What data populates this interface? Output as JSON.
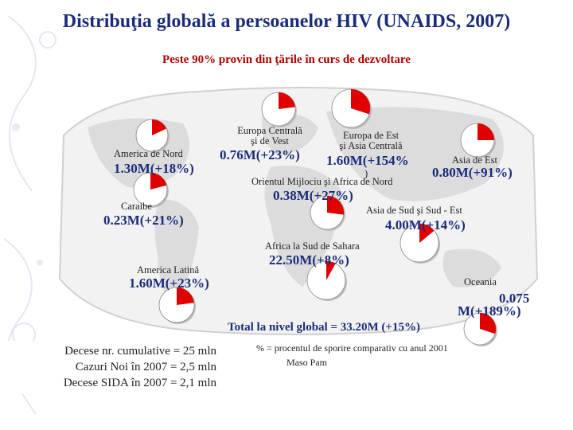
{
  "title": "Distribuţia globală a persoanelor HIV (UNAIDS, 2007)",
  "subtitle": "Peste 90% provin din ţările în curs de dezvoltare",
  "regions": [
    {
      "name": "America de Nord",
      "value": "1.30M(+18%)",
      "share": 0.18
    },
    {
      "name": "Europa Centrală şi de Vest",
      "value": "0.76M(+23%)",
      "share": 0.23
    },
    {
      "name": "Europa de Est şi Asia Centrală",
      "value": "1.60M(+154%)",
      "share": 0.3
    },
    {
      "name": "Asia de Est",
      "value": "0.80M(+91%)",
      "share": 0.25
    },
    {
      "name": "Orientul Mijlociu şi Africa de Nord",
      "value": "0.38M(+27%)",
      "share": 0.27
    },
    {
      "name": "Caraibe",
      "value": "0.23M(+21%)",
      "share": 0.21
    },
    {
      "name": "Asia de Sud şi Sud - Est",
      "value": "4.00M(+14%)",
      "share": 0.14
    },
    {
      "name": "Africa la Sud de Sahara",
      "value": "22.50M(+8%)",
      "share": 0.08
    },
    {
      "name": "America Latină",
      "value": "1.60M(+23%)",
      "share": 0.23
    },
    {
      "name": "Oceania",
      "value": "0.075M(+189%)",
      "share": 0.3
    }
  ],
  "labels": {
    "na": "America de Nord",
    "ecv_1": "Europa Centrală",
    "ecv_2": "şi de Vest",
    "eea_1": "Europa de Est",
    "eea_2": "şi Asia Centrală",
    "ae": "Asia de Est",
    "om": "Orientul Mijlociu şi Africa de Nord",
    "car": "Caraibe",
    "ass": "Asia de Sud şi Sud - Est",
    "afr": "Africa la Sud de Sahara",
    "al": "America Latină",
    "oc": "Oceania"
  },
  "values": {
    "na": "1.30M(+18%)",
    "ecv": "0.76M(+23%)",
    "eea_1": "1.60M(+154%",
    "eea_2": ")",
    "ae": "0.80M(+91%)",
    "om": "0.38M(+27%)",
    "car": "0.23M(+21%)",
    "ass": "4.00M(+14%)",
    "afr": "22.50M(+8%)",
    "al": "1.60M(+23%)",
    "oc_1": "0.075",
    "oc_2": "M(+189%)"
  },
  "total": "Total la nivel global = 33.20M (+15%)",
  "note": "% = procentul de sporire comparativ cu anul 2001",
  "credit": "Maso Pam",
  "stats": {
    "line1": "Decese nr. cumulative      = 25 mln",
    "line2": "Cazuri Noi în 2007  = 2,5 mln",
    "line3": "Decese SIDA în 2007     = 2,1 mln"
  },
  "colors": {
    "pie_fill": "#e00000",
    "pie_rest": "#ffffff",
    "title": "#1a2c7a",
    "subtitle": "#b00000",
    "map": "#e4e4e4"
  }
}
